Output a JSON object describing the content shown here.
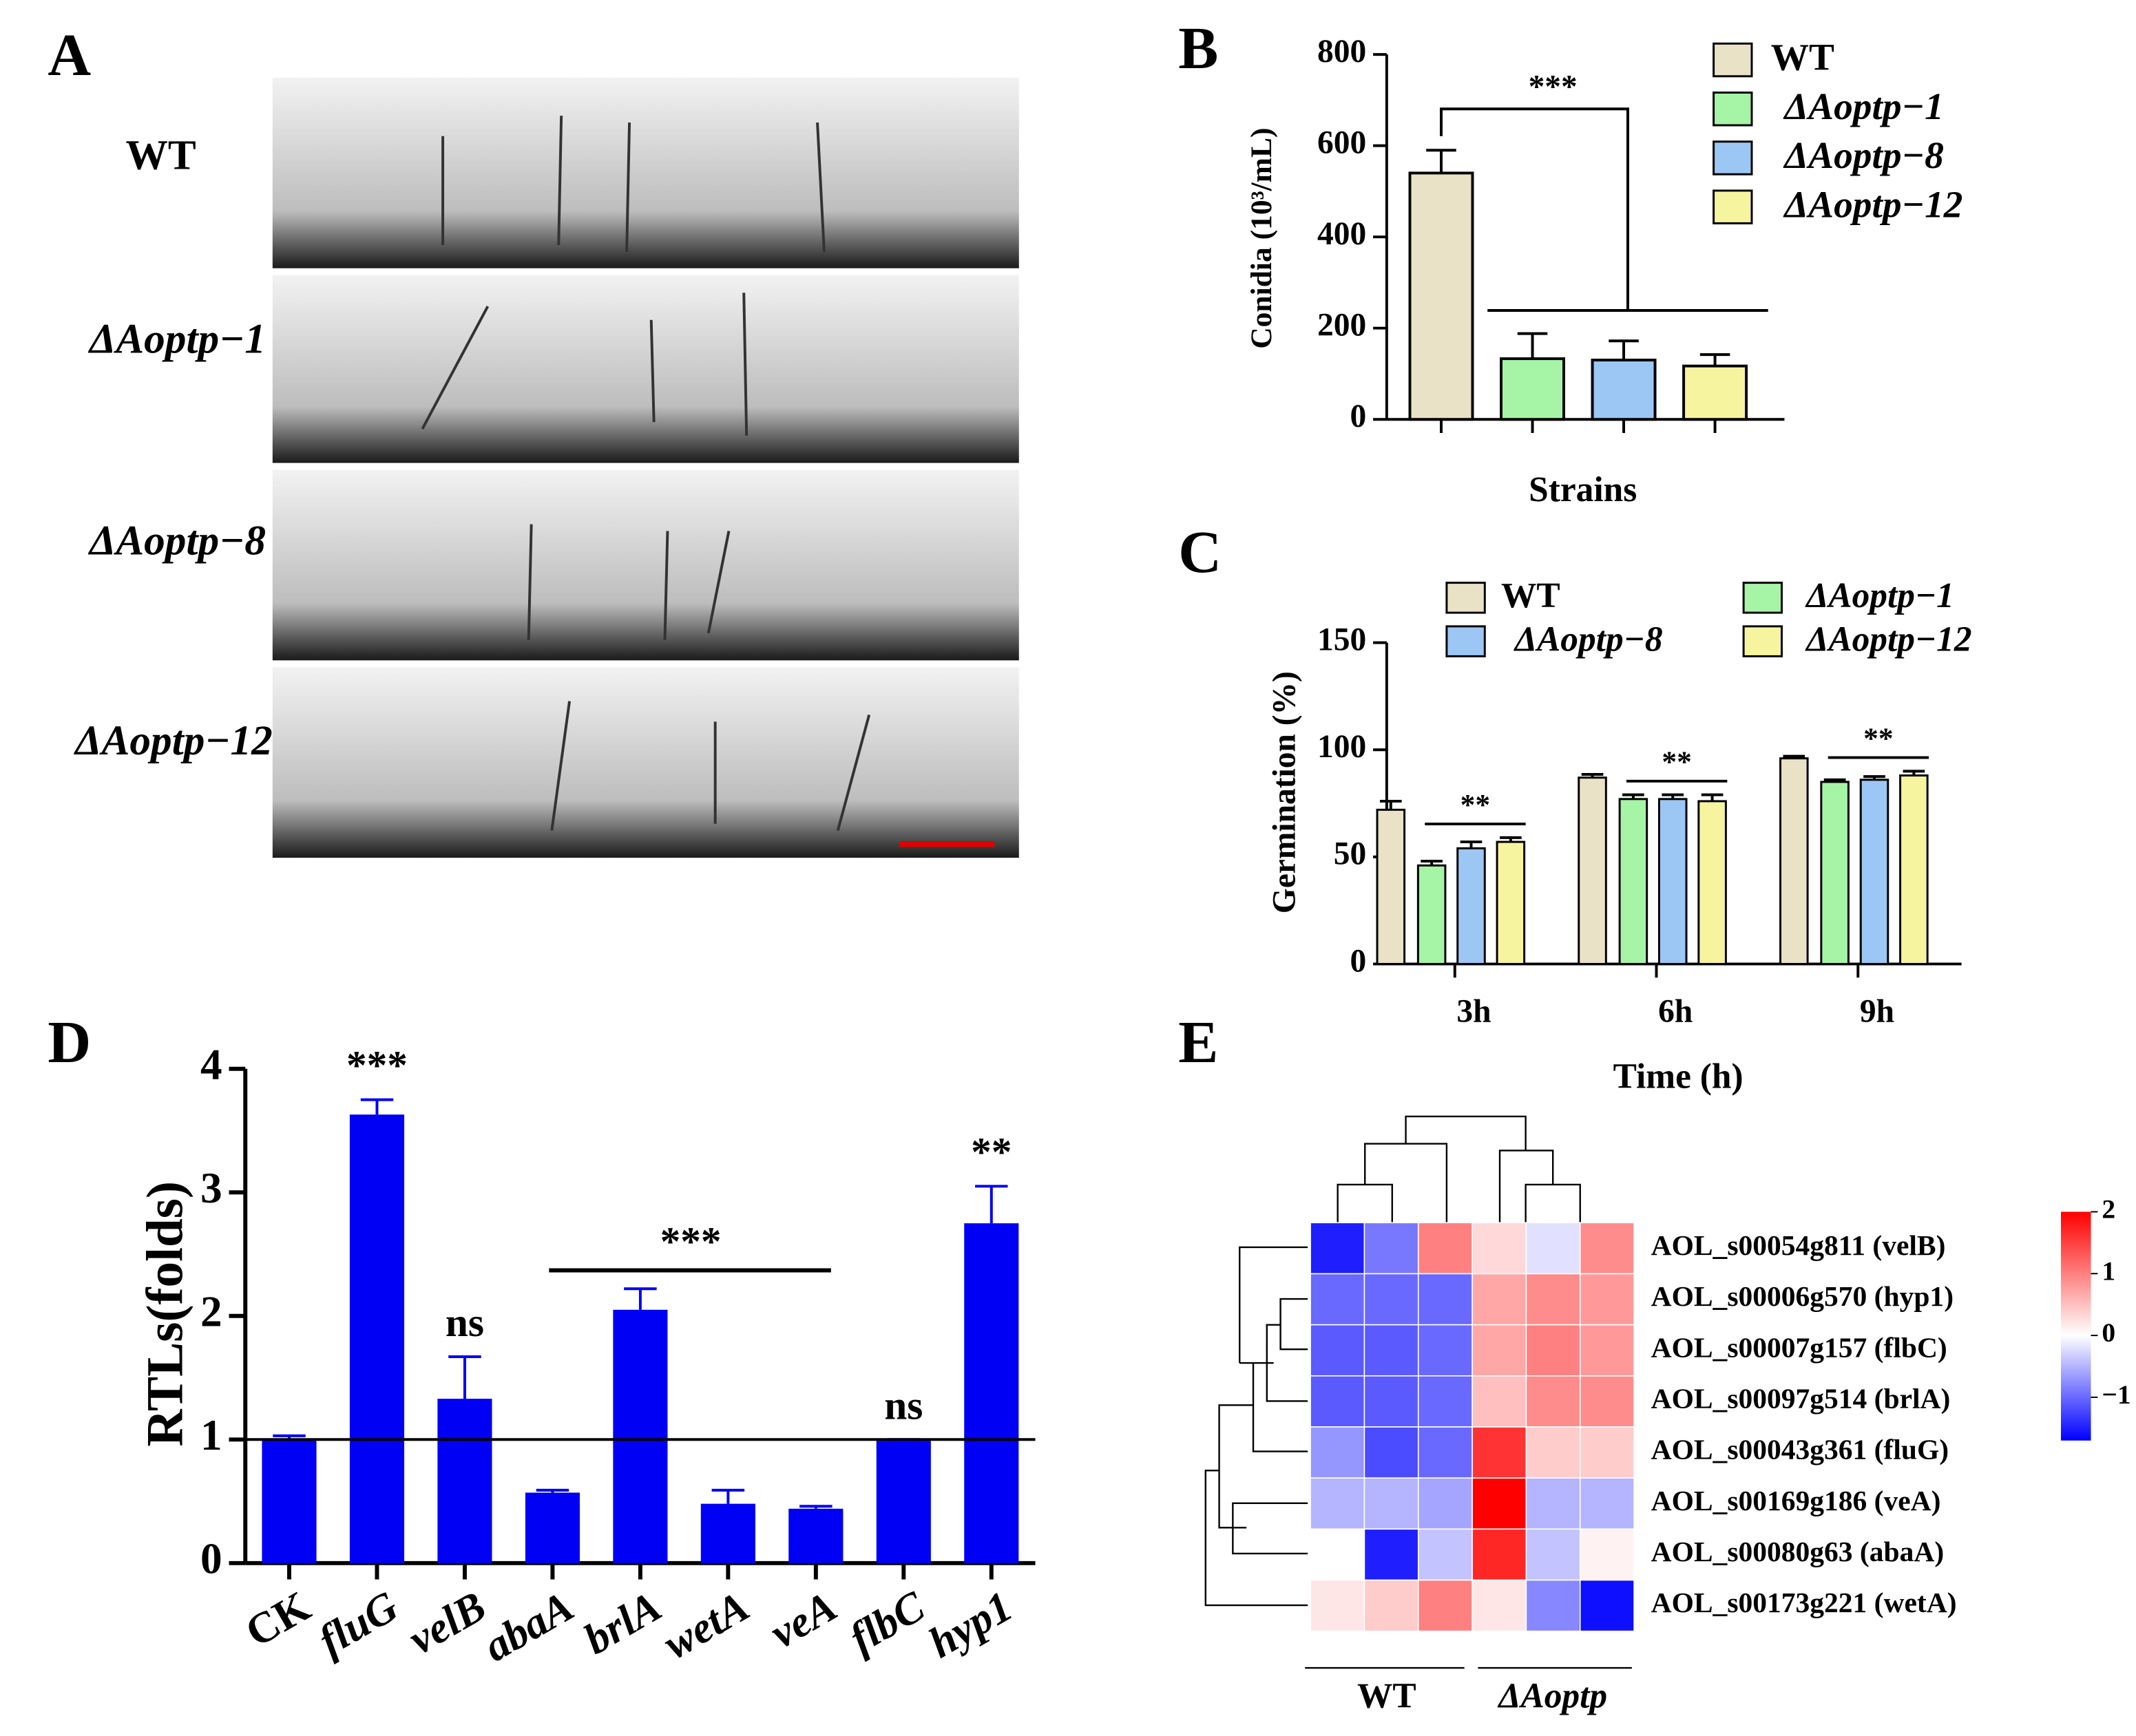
{
  "panel_labels": [
    "A",
    "B",
    "C",
    "D",
    "E"
  ],
  "panel_a": {
    "row_labels": [
      "WT",
      "ΔAoptp−1",
      "ΔAoptp−8",
      "ΔAoptp−12"
    ]
  },
  "chart_data": [
    {
      "type": "bar",
      "ylabel": "Conidia (10³/mL)",
      "xlabel": "Strains",
      "annotation": "***",
      "series": [
        {
          "name": "WT",
          "color": "#e9e2c6",
          "values": [
            540
          ],
          "errors": [
            50
          ]
        },
        {
          "name": "ΔAoptp−1",
          "color": "#a6f4a6",
          "values": [
            133
          ],
          "errors": [
            55
          ]
        },
        {
          "name": "ΔAoptp−8",
          "color": "#9cc6f4",
          "values": [
            130
          ],
          "errors": [
            42
          ]
        },
        {
          "name": "ΔAoptp−12",
          "color": "#f7f4a0",
          "values": [
            117
          ],
          "errors": [
            25
          ]
        }
      ],
      "ylim": [
        0,
        800
      ],
      "yticks": [
        0,
        200,
        400,
        600,
        800
      ]
    },
    {
      "type": "grouped-bar",
      "ylabel": "Germination (%)",
      "xlabel": "Time (h)",
      "categories": [
        "3h",
        "6h",
        "9h"
      ],
      "annotations": [
        "**",
        "**",
        "**"
      ],
      "series": [
        {
          "name": "WT",
          "color": "#e9e2c6",
          "values": [
            72,
            87,
            96
          ],
          "errors": [
            4,
            1.5,
            1
          ]
        },
        {
          "name": "ΔAoptp−1",
          "color": "#a6f4a6",
          "values": [
            46,
            77,
            85
          ],
          "errors": [
            2,
            2,
            1
          ]
        },
        {
          "name": "ΔAoptp−8",
          "color": "#9cc6f4",
          "values": [
            54,
            77,
            86
          ],
          "errors": [
            3,
            2,
            1.5
          ]
        },
        {
          "name": "ΔAoptp−12",
          "color": "#f7f4a0",
          "values": [
            57,
            76,
            88
          ],
          "errors": [
            2,
            3,
            2
          ]
        }
      ],
      "ylim": [
        0,
        150
      ],
      "yticks": [
        0,
        50,
        100,
        150
      ]
    },
    {
      "type": "bar",
      "ylabel": "RTLs(folds)",
      "categories": [
        "CK",
        "fluG",
        "velB",
        "abaA",
        "brlA",
        "wetA",
        "veA",
        "flbC",
        "hyp1"
      ],
      "values": [
        1.0,
        3.63,
        1.33,
        0.57,
        2.05,
        0.48,
        0.44,
        0.99,
        2.75
      ],
      "errors": [
        0.03,
        0.12,
        0.34,
        0.02,
        0.17,
        0.11,
        0.02,
        0.01,
        0.3
      ],
      "significance": [
        null,
        "***",
        "ns",
        null,
        null,
        null,
        null,
        "ns",
        "**"
      ],
      "group_significance": "***",
      "color": "#0000f5",
      "hline": 1,
      "ylim": [
        0,
        4
      ],
      "yticks": [
        0,
        1,
        2,
        3,
        4
      ]
    },
    {
      "type": "heatmap",
      "row_labels": [
        "AOL_s00054g811 (velB)",
        "AOL_s00006g570 (hyp1)",
        "AOL_s00007g157 (flbC)",
        "AOL_s00097g514 (brlA)",
        "AOL_s00043g361 (fluG)",
        "AOL_s00169g186 (veA)",
        "AOL_s00080g63 (abaA)",
        "AOL_s00173g221 (wetA)"
      ],
      "groups": [
        "WT",
        "ΔAoptp"
      ],
      "values": [
        [
          -1.5,
          -0.9,
          1.0,
          0.3,
          -0.2,
          0.9
        ],
        [
          -1.0,
          -1.0,
          -1.0,
          0.7,
          0.9,
          0.8
        ],
        [
          -1.1,
          -1.1,
          -1.0,
          0.7,
          1.0,
          0.8
        ],
        [
          -1.1,
          -1.1,
          -1.0,
          0.5,
          0.9,
          0.9
        ],
        [
          -0.7,
          -1.2,
          -1.0,
          1.6,
          0.4,
          0.4
        ],
        [
          -0.5,
          -0.5,
          -0.6,
          2.0,
          -0.5,
          -0.5
        ],
        [
          0.0,
          -1.5,
          -0.4,
          1.7,
          -0.4,
          0.1
        ],
        [
          0.2,
          0.4,
          1.0,
          0.2,
          -0.8,
          -1.6
        ]
      ],
      "zlim": [
        -1.7,
        2
      ],
      "zticks": [
        2,
        1,
        0,
        {
          "value": -1,
          "label": "−1"
        }
      ]
    }
  ]
}
